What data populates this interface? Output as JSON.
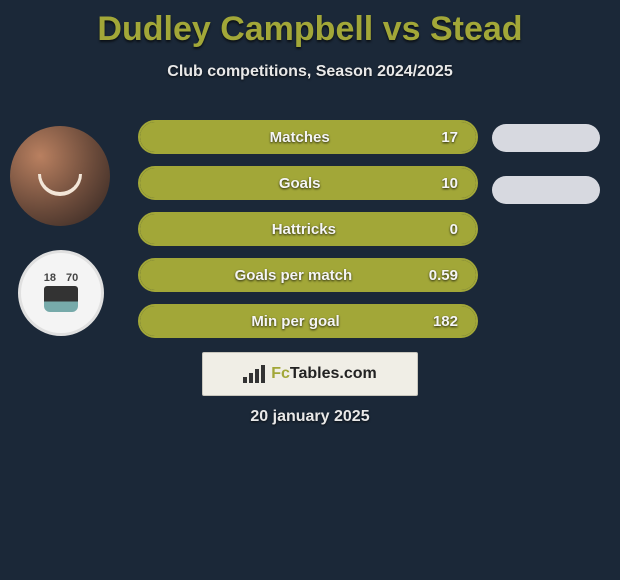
{
  "title": "Dudley Campbell vs Stead",
  "subtitle": "Club competitions, Season 2024/2025",
  "colors": {
    "background": "#1b2838",
    "accent": "#a2a738",
    "bar_border": "#a2a738",
    "bar_fill": "#a2a738",
    "text": "#ffffff",
    "subtitle_text": "#e8e8e8",
    "oval": "#d7d9e0",
    "card_bg": "#f0eee6"
  },
  "avatars": {
    "player1": {
      "name": "Dudley Campbell"
    },
    "player2": {
      "name": "Stead",
      "crest_numbers": [
        "18",
        "70"
      ]
    }
  },
  "stats": [
    {
      "label": "Matches",
      "value": "17",
      "fill_pct": 100
    },
    {
      "label": "Goals",
      "value": "10",
      "fill_pct": 100
    },
    {
      "label": "Hattricks",
      "value": "0",
      "fill_pct": 100
    },
    {
      "label": "Goals per match",
      "value": "0.59",
      "fill_pct": 100
    },
    {
      "label": "Min per goal",
      "value": "182",
      "fill_pct": 100
    }
  ],
  "right_ovals_count": 2,
  "brand": {
    "prefix": "Fc",
    "rest": "Tables.com"
  },
  "date": "20 january 2025"
}
